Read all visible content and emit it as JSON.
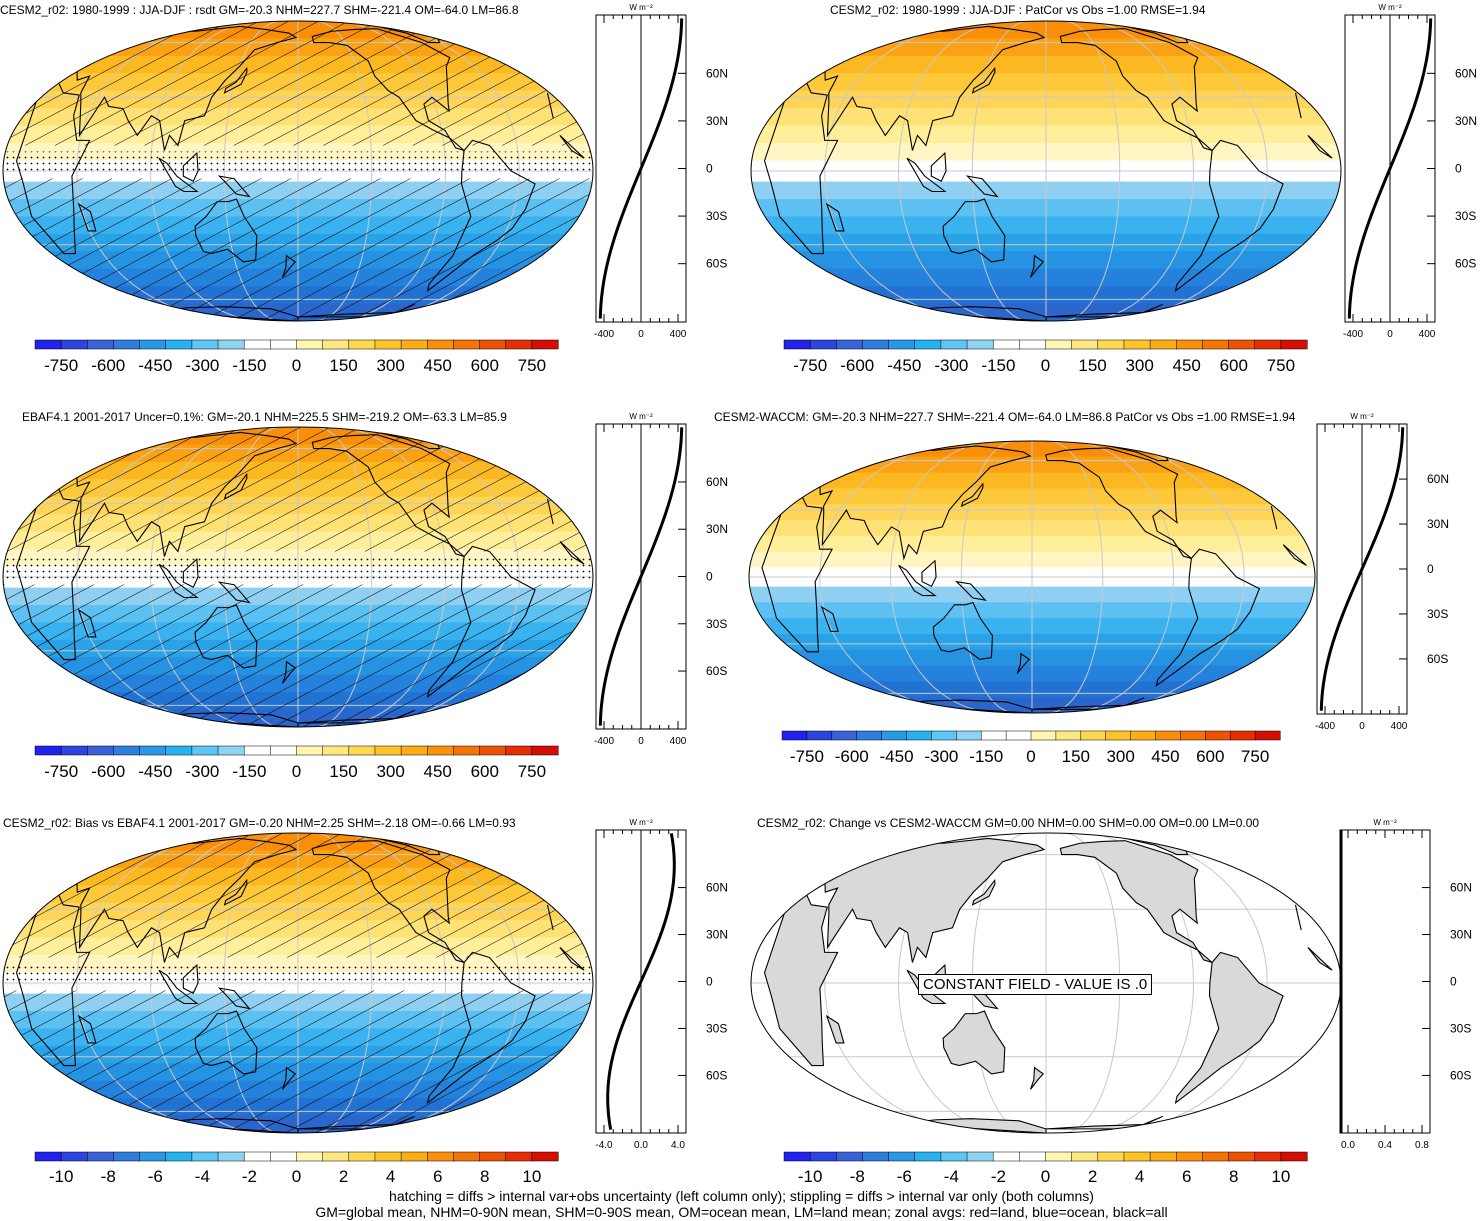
{
  "panels": [
    {
      "id": "p1",
      "title": "CESM2_r02: 1980-1999 : JJA-DJF : rsdt GM=-20.3 NHM=227.7 SHM=-221.4 OM=-64.0 LM=86.8",
      "colorbar_labels": [
        "-750",
        "-600",
        "-450",
        "-300",
        "-150",
        "0",
        "150",
        "300",
        "450",
        "600",
        "750"
      ],
      "zonal_ticks": [
        "-400",
        "0",
        "400"
      ],
      "zonal_units": "W m⁻²",
      "lat_labels": [
        "60N",
        "30N",
        "0",
        "30S",
        "60S"
      ],
      "hatching": true,
      "stippling": true
    },
    {
      "id": "p2",
      "title": "CESM2_r02: 1980-1999 : JJA-DJF : PatCor vs Obs =1.00 RMSE=1.94",
      "colorbar_labels": [
        "-750",
        "-600",
        "-450",
        "-300",
        "-150",
        "0",
        "150",
        "300",
        "450",
        "600",
        "750"
      ],
      "zonal_ticks": [
        "-400",
        "0",
        "400"
      ],
      "zonal_units": "W m⁻²",
      "lat_labels": [
        "60N",
        "30N",
        "0",
        "30S",
        "60S"
      ],
      "hatching": false,
      "stippling": false
    },
    {
      "id": "p3",
      "title": "EBAF4.1 2001-2017 Uncer=0.1%: GM=-20.1 NHM=225.5 SHM=-219.2 OM=-63.3 LM=85.9",
      "colorbar_labels": [
        "-750",
        "-600",
        "-450",
        "-300",
        "-150",
        "0",
        "150",
        "300",
        "450",
        "600",
        "750"
      ],
      "zonal_ticks": [
        "-400",
        "0",
        "400"
      ],
      "zonal_units": "W m⁻²",
      "lat_labels": [
        "60N",
        "30N",
        "0",
        "30S",
        "60S"
      ],
      "hatching": true,
      "stippling": true
    },
    {
      "id": "p4",
      "title": "CESM2-WACCM: GM=-20.3 NHM=227.7 SHM=-221.4 OM=-64.0 LM=86.8 PatCor vs Obs =1.00 RMSE=1.94",
      "colorbar_labels": [
        "-750",
        "-600",
        "-450",
        "-300",
        "-150",
        "0",
        "150",
        "300",
        "450",
        "600",
        "750"
      ],
      "zonal_ticks": [
        "-400",
        "0",
        "400"
      ],
      "zonal_units": "W m⁻²",
      "lat_labels": [
        "60N",
        "30N",
        "0",
        "30S",
        "60S"
      ],
      "hatching": false,
      "stippling": false
    },
    {
      "id": "p5",
      "title": "CESM2_r02: Bias vs EBAF4.1 2001-2017 GM=-0.20 NHM=2.25 SHM=-2.18 OM=-0.66 LM=0.93",
      "colorbar_labels": [
        "-10",
        "-8",
        "-6",
        "-4",
        "-2",
        "0",
        "2",
        "4",
        "6",
        "8",
        "10"
      ],
      "zonal_ticks": [
        "-4.0",
        "0.0",
        "4.0"
      ],
      "zonal_units": "W m⁻²",
      "lat_labels": [
        "60N",
        "30N",
        "0",
        "30S",
        "60S"
      ],
      "hatching": true,
      "stippling": true
    },
    {
      "id": "p6",
      "title": "CESM2_r02: Change vs CESM2-WACCM GM=0.00 NHM=0.00 SHM=0.00 OM=0.00 LM=0.00",
      "colorbar_labels": [
        "-10",
        "-8",
        "-6",
        "-4",
        "-2",
        "0",
        "2",
        "4",
        "6",
        "8",
        "10"
      ],
      "zonal_ticks": [
        "0.0",
        "0.4",
        "0.8"
      ],
      "zonal_units": "W m⁻²",
      "lat_labels": [
        "60N",
        "30N",
        "0",
        "30S",
        "60S"
      ],
      "constant_label": "CONSTANT FIELD - VALUE IS .0",
      "hatching": false,
      "stippling": false
    }
  ],
  "colorbar_colors": [
    "#2222ee",
    "#2c44e0",
    "#3a62d8",
    "#2e7ee0",
    "#2a98e8",
    "#26b2f0",
    "#5cc6f4",
    "#8ed4f2",
    "#ffffff",
    "#ffffff",
    "#fff6b0",
    "#ffe880",
    "#fed84e",
    "#fcc428",
    "#fcac14",
    "#f8900a",
    "#f47408",
    "#ee5206",
    "#e42e04",
    "#d40e02"
  ],
  "footer": {
    "line1": "hatching = diffs > internal var+obs uncertainty (left column only); stippling = diffs > internal var only (both columns)",
    "line2": "GM=global mean, NHM=0-90N mean, SHM=0-90S mean, OM=ocean mean, LM=land mean; zonal avgs: red=land, blue=ocean, black=all"
  }
}
